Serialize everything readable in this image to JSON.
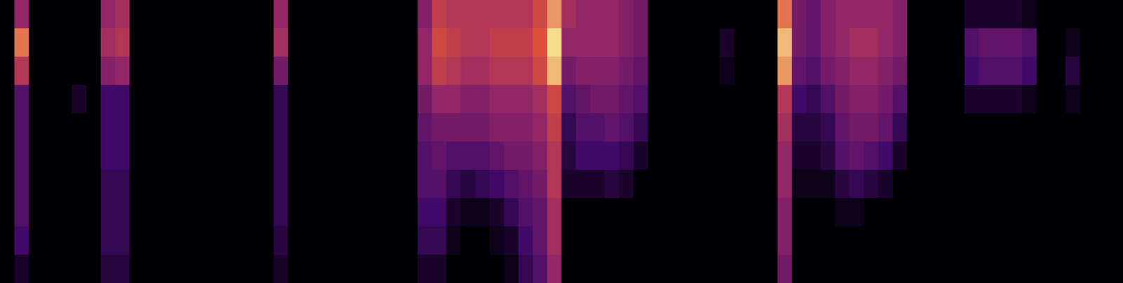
{
  "chart_data": {
    "type": "heatmap",
    "tick_labels": false,
    "color_range": [
      0,
      1
    ],
    "cells": [
      [
        0,
        0.5,
        0,
        0,
        0,
        0,
        0,
        0.5,
        0.55,
        0,
        0,
        0,
        0,
        0,
        0,
        0,
        0,
        0,
        0,
        0.5,
        0,
        0,
        0,
        0,
        0,
        0,
        0,
        0,
        0,
        0.45,
        0.65,
        0.6,
        0.6,
        0.6,
        0.6,
        0.6,
        0.6,
        0.7,
        0.85,
        0.55,
        0.5,
        0.5,
        0.5,
        0.45,
        0.4,
        0,
        0,
        0,
        0,
        0,
        0,
        0,
        0,
        0,
        0.8,
        0.4,
        0.35,
        0.45,
        0.5,
        0.5,
        0.5,
        0.5,
        0.45,
        0,
        0,
        0,
        0,
        0.1,
        0.1,
        0.1,
        0.1,
        0.05,
        0,
        0,
        0,
        0,
        0,
        0
      ],
      [
        0,
        0.8,
        0,
        0,
        0,
        0,
        0,
        0.55,
        0.6,
        0,
        0,
        0,
        0,
        0,
        0,
        0,
        0,
        0,
        0,
        0.55,
        0,
        0,
        0,
        0,
        0,
        0,
        0,
        0,
        0,
        0.5,
        0.7,
        0.65,
        0.6,
        0.6,
        0.65,
        0.65,
        0.65,
        0.75,
        0.95,
        0.5,
        0.5,
        0.5,
        0.5,
        0.45,
        0.4,
        0,
        0,
        0,
        0,
        0,
        0.1,
        0,
        0,
        0,
        0.9,
        0.4,
        0.35,
        0.45,
        0.5,
        0.55,
        0.55,
        0.5,
        0.45,
        0,
        0,
        0,
        0,
        0.3,
        0.35,
        0.35,
        0.35,
        0.3,
        0,
        0,
        0.05,
        0,
        0,
        0
      ],
      [
        0,
        0.6,
        0,
        0,
        0,
        0,
        0,
        0.45,
        0.5,
        0,
        0,
        0,
        0,
        0,
        0,
        0,
        0,
        0,
        0,
        0.4,
        0,
        0,
        0,
        0,
        0,
        0,
        0,
        0,
        0,
        0.5,
        0.65,
        0.6,
        0.55,
        0.55,
        0.6,
        0.6,
        0.6,
        0.7,
        0.9,
        0.4,
        0.45,
        0.45,
        0.45,
        0.4,
        0.35,
        0,
        0,
        0,
        0,
        0,
        0.05,
        0,
        0,
        0,
        0.85,
        0.35,
        0.3,
        0.4,
        0.45,
        0.5,
        0.5,
        0.45,
        0.4,
        0,
        0,
        0,
        0,
        0.25,
        0.3,
        0.3,
        0.3,
        0.25,
        0,
        0,
        0.15,
        0,
        0,
        0
      ],
      [
        0,
        0.3,
        0,
        0,
        0,
        0.1,
        0,
        0.25,
        0.25,
        0,
        0,
        0,
        0,
        0,
        0,
        0,
        0,
        0,
        0,
        0.2,
        0,
        0,
        0,
        0,
        0,
        0,
        0,
        0,
        0,
        0.4,
        0.5,
        0.5,
        0.45,
        0.45,
        0.5,
        0.5,
        0.5,
        0.55,
        0.7,
        0.3,
        0.35,
        0.4,
        0.4,
        0.35,
        0.3,
        0,
        0,
        0,
        0,
        0,
        0,
        0,
        0,
        0,
        0.6,
        0.25,
        0.2,
        0.3,
        0.4,
        0.45,
        0.45,
        0.4,
        0.3,
        0,
        0,
        0,
        0,
        0.1,
        0.1,
        0.1,
        0.1,
        0.05,
        0,
        0,
        0.05,
        0,
        0,
        0
      ],
      [
        0,
        0.3,
        0,
        0,
        0,
        0,
        0,
        0.25,
        0.25,
        0,
        0,
        0,
        0,
        0,
        0,
        0,
        0,
        0,
        0,
        0.2,
        0,
        0,
        0,
        0,
        0,
        0,
        0,
        0,
        0,
        0.35,
        0.4,
        0.4,
        0.4,
        0.4,
        0.45,
        0.45,
        0.45,
        0.5,
        0.65,
        0.2,
        0.3,
        0.3,
        0.35,
        0.3,
        0.2,
        0,
        0,
        0,
        0,
        0,
        0,
        0,
        0,
        0,
        0.55,
        0.15,
        0.15,
        0.2,
        0.35,
        0.4,
        0.4,
        0.35,
        0.2,
        0,
        0,
        0,
        0,
        0,
        0,
        0,
        0,
        0,
        0,
        0,
        0,
        0,
        0,
        0
      ],
      [
        0,
        0.3,
        0,
        0,
        0,
        0,
        0,
        0.25,
        0.25,
        0,
        0,
        0,
        0,
        0,
        0,
        0,
        0,
        0,
        0,
        0.2,
        0,
        0,
        0,
        0,
        0,
        0,
        0,
        0,
        0,
        0.3,
        0.35,
        0.3,
        0.3,
        0.3,
        0.35,
        0.4,
        0.4,
        0.45,
        0.6,
        0.15,
        0.25,
        0.25,
        0.25,
        0.2,
        0.1,
        0,
        0,
        0,
        0,
        0,
        0,
        0,
        0,
        0,
        0.5,
        0.1,
        0.1,
        0.15,
        0.3,
        0.35,
        0.3,
        0.25,
        0.1,
        0,
        0,
        0,
        0,
        0,
        0,
        0,
        0,
        0,
        0,
        0,
        0,
        0,
        0,
        0
      ],
      [
        0,
        0.3,
        0,
        0,
        0,
        0,
        0,
        0.2,
        0.2,
        0,
        0,
        0,
        0,
        0,
        0,
        0,
        0,
        0,
        0,
        0.2,
        0,
        0,
        0,
        0,
        0,
        0,
        0,
        0,
        0,
        0.3,
        0.3,
        0.2,
        0.15,
        0.2,
        0.25,
        0.3,
        0.35,
        0.4,
        0.6,
        0.1,
        0.1,
        0.1,
        0.15,
        0.1,
        0,
        0,
        0,
        0,
        0,
        0,
        0,
        0,
        0,
        0,
        0.5,
        0.05,
        0.05,
        0.05,
        0.15,
        0.2,
        0.15,
        0.1,
        0,
        0,
        0,
        0,
        0,
        0,
        0,
        0,
        0,
        0,
        0,
        0,
        0,
        0,
        0,
        0
      ],
      [
        0,
        0.3,
        0,
        0,
        0,
        0,
        0,
        0.2,
        0.2,
        0,
        0,
        0,
        0,
        0,
        0,
        0,
        0,
        0,
        0,
        0.2,
        0,
        0,
        0,
        0,
        0,
        0,
        0,
        0,
        0,
        0.25,
        0.25,
        0.1,
        0.05,
        0.05,
        0.1,
        0.2,
        0.3,
        0.35,
        0.55,
        0,
        0,
        0,
        0,
        0,
        0,
        0,
        0,
        0,
        0,
        0,
        0,
        0,
        0,
        0,
        0.45,
        0,
        0,
        0,
        0.05,
        0.05,
        0,
        0,
        0,
        0,
        0,
        0,
        0,
        0,
        0,
        0,
        0,
        0,
        0,
        0,
        0,
        0,
        0,
        0
      ],
      [
        0,
        0.25,
        0,
        0,
        0,
        0,
        0,
        0.2,
        0.2,
        0,
        0,
        0,
        0,
        0,
        0,
        0,
        0,
        0,
        0,
        0.15,
        0,
        0,
        0,
        0,
        0,
        0,
        0,
        0,
        0,
        0.2,
        0.2,
        0.05,
        0,
        0,
        0.05,
        0.1,
        0.25,
        0.35,
        0.55,
        0,
        0,
        0,
        0,
        0,
        0,
        0,
        0,
        0,
        0,
        0,
        0,
        0,
        0,
        0,
        0.45,
        0,
        0,
        0,
        0,
        0,
        0,
        0,
        0,
        0,
        0,
        0,
        0,
        0,
        0,
        0,
        0,
        0,
        0,
        0,
        0,
        0,
        0,
        0
      ],
      [
        0,
        0.1,
        0,
        0,
        0,
        0,
        0,
        0.15,
        0.15,
        0,
        0,
        0,
        0,
        0,
        0,
        0,
        0,
        0,
        0,
        0.1,
        0,
        0,
        0,
        0,
        0,
        0,
        0,
        0,
        0,
        0.1,
        0.1,
        0,
        0,
        0,
        0,
        0.05,
        0.2,
        0.3,
        0.5,
        0,
        0,
        0,
        0,
        0,
        0,
        0,
        0,
        0,
        0,
        0,
        0,
        0,
        0,
        0,
        0.4,
        0,
        0,
        0,
        0,
        0,
        0,
        0,
        0,
        0,
        0,
        0,
        0,
        0,
        0,
        0,
        0,
        0,
        0,
        0,
        0,
        0,
        0,
        0
      ]
    ]
  }
}
